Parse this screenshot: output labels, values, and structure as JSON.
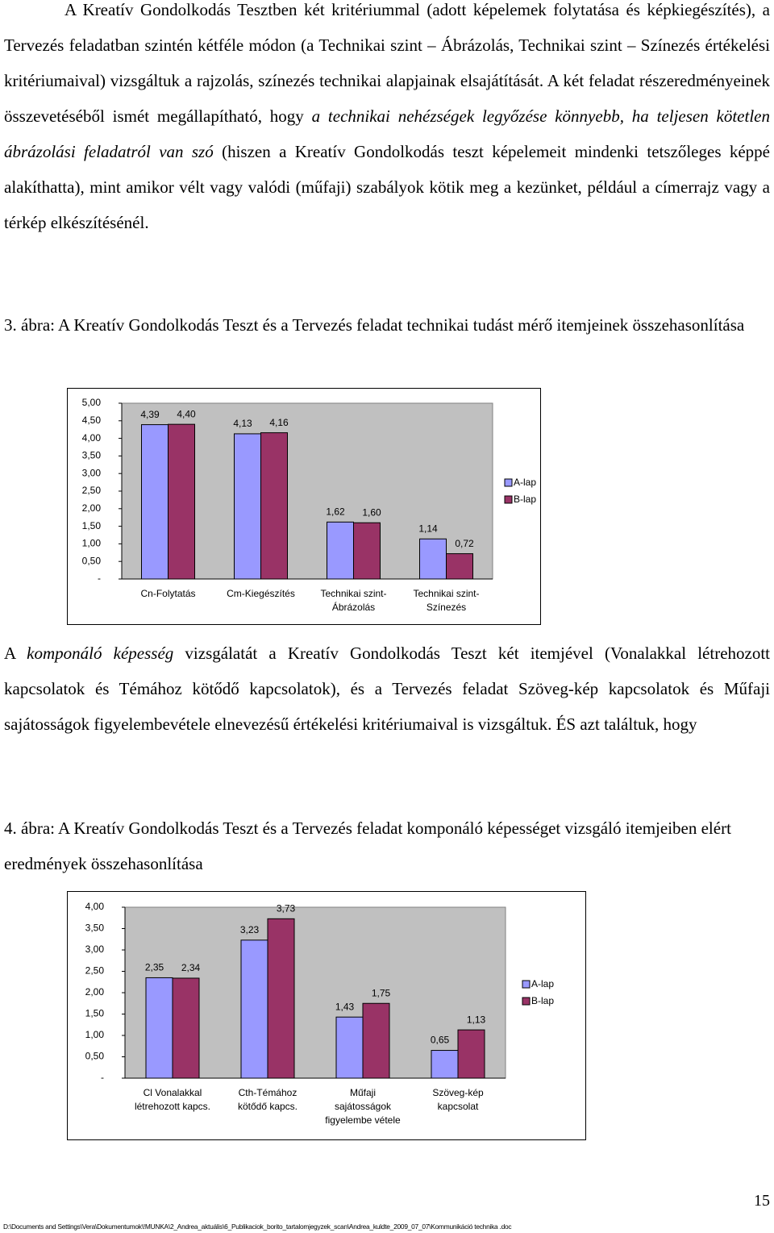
{
  "paragraphs": [
    {
      "runs": [
        {
          "text": "A Kreatív Gondolkodás Tesztben két kritériummal (adott képelemek folytatása és képkiegészítés), a Tervezés feladatban szintén kétféle módon (a Technikai szint – Ábrázolás, Technikai szint – Színezés értékelési kritériumaival) vizsgáltuk a rajzolás, színezés technikai alapjainak elsajátítását. A két feladat részeredményeinek összevetéséből ismét megállapítható, hogy ",
          "italic": false
        },
        {
          "text": "a technikai nehézségek legyőzése könnyebb, ha teljesen kötetlen ábrázolási feladatról van szó",
          "italic": true
        },
        {
          "text": " (hiszen a Kreatív Gondolkodás teszt képelemeit mindenki tetszőleges képpé alakíthatta), mint amikor vélt vagy valódi (műfaji) szabályok kötik meg a kezünket, például a címerrajz vagy a térkép elkészítésénél.",
          "italic": false
        }
      ]
    },
    {
      "runs": [
        {
          "text": "A ",
          "italic": false
        },
        {
          "text": "komponáló képesség",
          "italic": true
        },
        {
          "text": " vizsgálatát a Kreatív Gondolkodás Teszt két itemjével (Vonalakkal létrehozott kapcsolatok és Témához kötődő kapcsolatok), és a Tervezés feladat Szöveg-kép kapcsolatok és Műfaji sajátosságok figyelembevétele elnevezésű értékelési kritériumaival is vizsgáltuk. ÉS azt találtuk, hogy",
          "italic": false
        }
      ]
    }
  ],
  "captions": [
    "3. ábra: A Kreatív Gondolkodás Teszt és a Tervezés feladat technikai tudást mérő itemjeinek összehasonlítása",
    "4. ábra: A Kreatív Gondolkodás Teszt és a Tervezés feladat komponáló képességet vizsgáló itemjeiben elért eredmények összehasonlítása"
  ],
  "chart_data": [
    {
      "type": "bar",
      "categories": [
        "Cn-Folytatás",
        "Cm-Kiegészítés",
        "Technikai szint-\nÁbrázolás",
        "Technikai szint-\nSzínezés"
      ],
      "series": [
        {
          "name": "A-lap",
          "color": "#9999ff",
          "values": [
            4.39,
            4.13,
            1.62,
            1.14
          ],
          "value_labels": [
            "4,39",
            "4,13",
            "1,62",
            "1,14"
          ]
        },
        {
          "name": "B-lap",
          "color": "#993366",
          "values": [
            4.4,
            4.16,
            1.6,
            0.72
          ],
          "value_labels": [
            "4,40",
            "4,16",
            "1,60",
            "0,72"
          ]
        }
      ],
      "ylim": [
        0,
        5
      ],
      "yticks": [
        {
          "value": 0,
          "label": "-"
        },
        {
          "value": 0.5,
          "label": "0,50"
        },
        {
          "value": 1,
          "label": "1,00"
        },
        {
          "value": 1.5,
          "label": "1,50"
        },
        {
          "value": 2,
          "label": "2,00"
        },
        {
          "value": 2.5,
          "label": "2,50"
        },
        {
          "value": 3,
          "label": "3,00"
        },
        {
          "value": 3.5,
          "label": "3,50"
        },
        {
          "value": 4,
          "label": "4,00"
        },
        {
          "value": 4.5,
          "label": "4,50"
        },
        {
          "value": 5,
          "label": "5,00"
        }
      ],
      "grid": false,
      "plot_background": "#c0c0c0",
      "legend": "right"
    },
    {
      "type": "bar",
      "categories": [
        "Cl Vonalakkal\nlétrehozott kapcs.",
        "Cth-Témához\nkötődő kapcs.",
        "Műfaji\nsajátosságok\nfigyelembe vétele",
        "Szöveg-kép\nkapcsolat"
      ],
      "series": [
        {
          "name": "A-lap",
          "color": "#9999ff",
          "values": [
            2.35,
            3.23,
            1.43,
            0.65
          ],
          "value_labels": [
            "2,35",
            "3,23",
            "1,43",
            "0,65"
          ]
        },
        {
          "name": "B-lap",
          "color": "#993366",
          "values": [
            2.34,
            3.73,
            1.75,
            1.13
          ],
          "value_labels": [
            "2,34",
            "3,73",
            "1,75",
            "1,13"
          ]
        }
      ],
      "ylim": [
        0,
        4
      ],
      "yticks": [
        {
          "value": 0,
          "label": "-"
        },
        {
          "value": 0.5,
          "label": "0,50"
        },
        {
          "value": 1,
          "label": "1,00"
        },
        {
          "value": 1.5,
          "label": "1,50"
        },
        {
          "value": 2,
          "label": "2,00"
        },
        {
          "value": 2.5,
          "label": "2,50"
        },
        {
          "value": 3,
          "label": "3,00"
        },
        {
          "value": 3.5,
          "label": "3,50"
        },
        {
          "value": 4,
          "label": "4,00"
        }
      ],
      "grid": false,
      "plot_background": "#c0c0c0",
      "legend": "right"
    }
  ],
  "page_number": "15",
  "footer": "D:\\Documents and Settings\\Vera\\Dokumentumok\\!MUNKA\\2_Andrea_aktuális\\6_Publikaciok_borito_tartalomjegyzek_scan\\Andrea_kuldte_2009_07_07\\Kommunikáció technika .doc"
}
